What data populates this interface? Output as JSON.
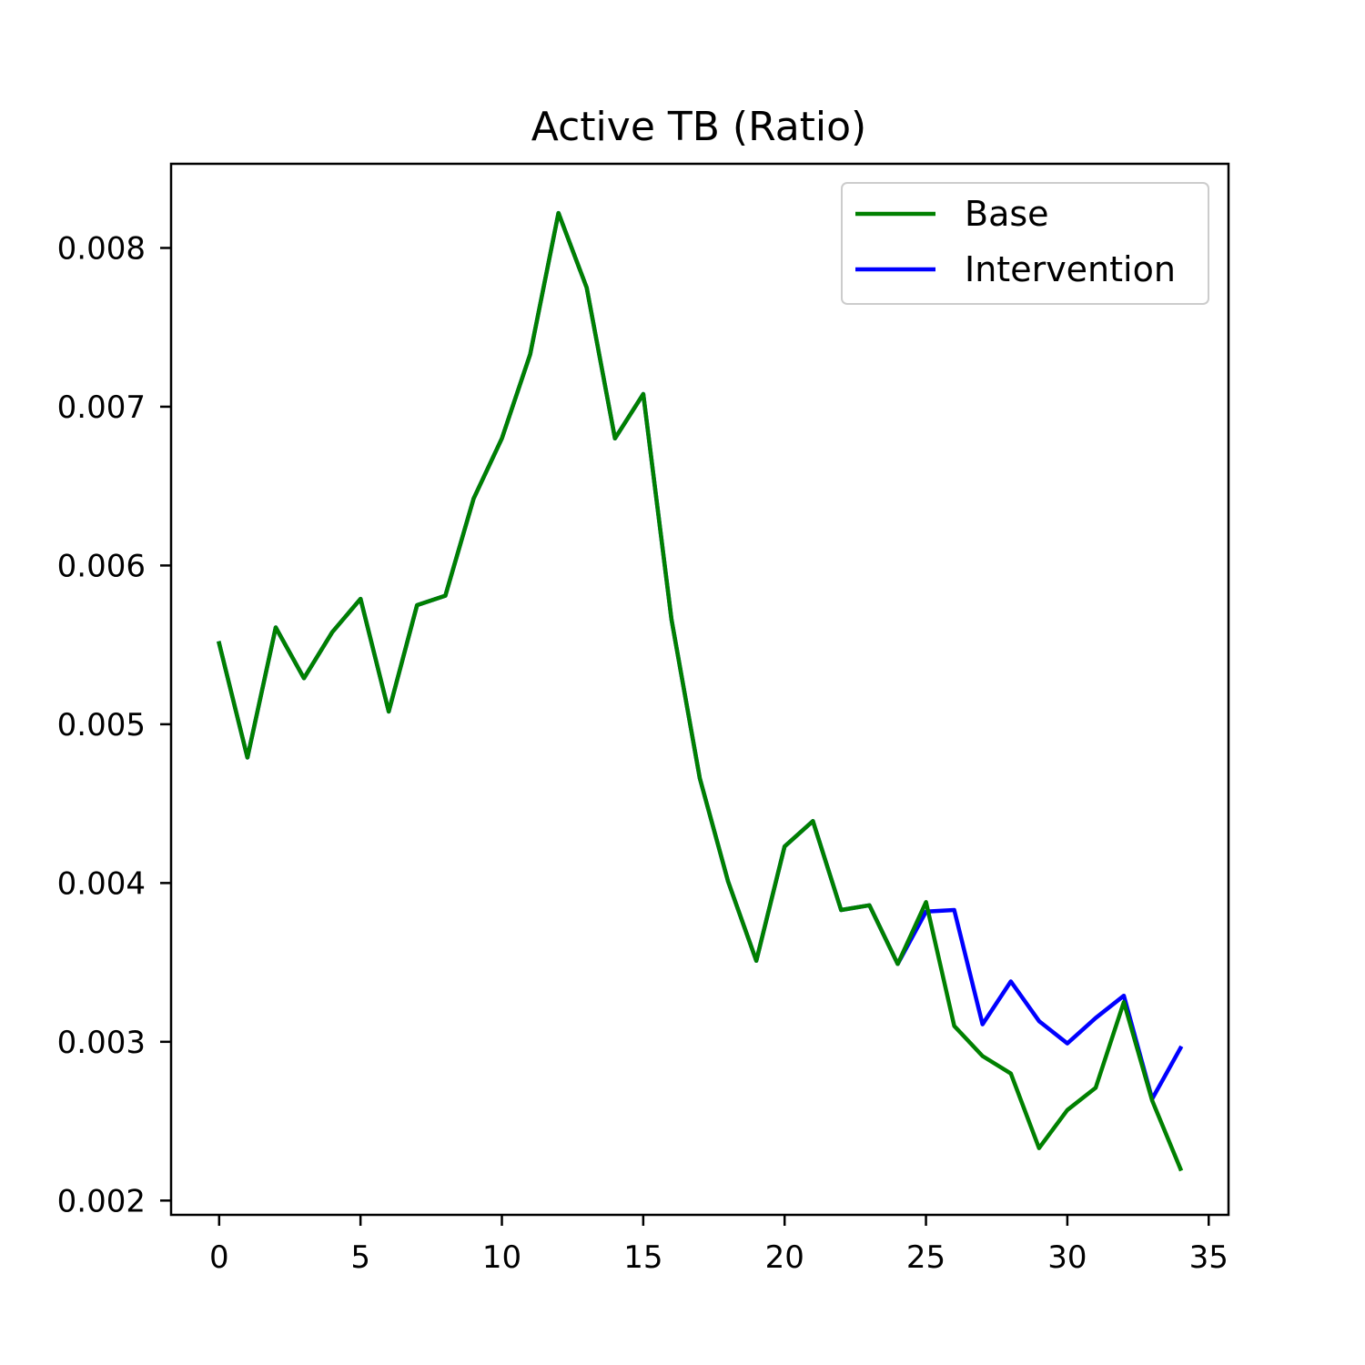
{
  "chart_data": {
    "type": "line",
    "title": "Active TB (Ratio)",
    "xlabel": "",
    "ylabel": "",
    "xlim": [
      -1.7,
      35.7
    ],
    "ylim": [
      0.00191,
      0.00853
    ],
    "xticks": [
      "0",
      "5",
      "10",
      "15",
      "20",
      "25",
      "30",
      "35"
    ],
    "xtick_values": [
      0,
      5,
      10,
      15,
      20,
      25,
      30,
      35
    ],
    "yticks": [
      "0.002",
      "0.003",
      "0.004",
      "0.005",
      "0.006",
      "0.007",
      "0.008"
    ],
    "ytick_values": [
      0.002,
      0.003,
      0.004,
      0.005,
      0.006,
      0.007,
      0.008
    ],
    "grid": false,
    "legend_position": "top-right",
    "x": [
      0,
      1,
      2,
      3,
      4,
      5,
      6,
      7,
      8,
      9,
      10,
      11,
      12,
      13,
      14,
      15,
      16,
      17,
      18,
      19,
      20,
      21,
      22,
      23,
      24,
      25,
      26,
      27,
      28,
      29,
      30,
      31,
      32,
      33,
      34
    ],
    "series": [
      {
        "name": "Intervention",
        "color": "#0000ff",
        "values": [
          0.00551,
          0.00479,
          0.00561,
          0.00529,
          0.00558,
          0.00579,
          0.00508,
          0.00575,
          0.00581,
          0.00642,
          0.0068,
          0.00733,
          0.00822,
          0.00775,
          0.0068,
          0.00708,
          0.00566,
          0.00466,
          0.00401,
          0.00351,
          0.00423,
          0.00439,
          0.00383,
          0.00386,
          0.00349,
          0.00382,
          0.00383,
          0.00311,
          0.00338,
          0.00313,
          0.00299,
          0.00315,
          0.00329,
          0.00264,
          0.00296
        ]
      },
      {
        "name": "Base",
        "color": "#008000",
        "values": [
          0.00551,
          0.00479,
          0.00561,
          0.00529,
          0.00558,
          0.00579,
          0.00508,
          0.00575,
          0.00581,
          0.00642,
          0.0068,
          0.00733,
          0.00822,
          0.00775,
          0.0068,
          0.00708,
          0.00566,
          0.00466,
          0.00401,
          0.00351,
          0.00423,
          0.00439,
          0.00383,
          0.00386,
          0.00349,
          0.00388,
          0.0031,
          0.00291,
          0.0028,
          0.00233,
          0.00257,
          0.00271,
          0.00325,
          0.00263,
          0.0022
        ]
      }
    ],
    "legend_order": [
      "Base",
      "Intervention"
    ]
  }
}
